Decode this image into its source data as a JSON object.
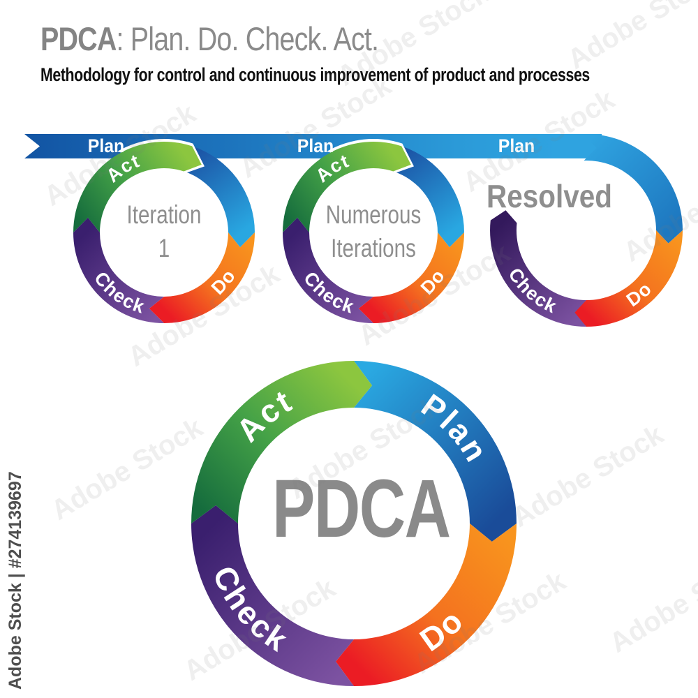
{
  "header": {
    "title_bold": "PDCA",
    "title_rest": ": Plan. Do. Check. Act.",
    "subtitle": "Methodology for control and continuous improvement of product and processes"
  },
  "ribbon": {
    "plan_labels": [
      "Plan",
      "Plan",
      "Plan"
    ]
  },
  "cycles": [
    {
      "name": "iteration-1",
      "center_lines": [
        "Iteration",
        "1"
      ],
      "arc_labels": {
        "act": "Act",
        "do": "Do",
        "check": "Check"
      }
    },
    {
      "name": "numerous-iterations",
      "center_lines": [
        "Numerous",
        "Iterations"
      ],
      "arc_labels": {
        "act": "Act",
        "do": "Do",
        "check": "Check"
      }
    },
    {
      "name": "resolved",
      "label": "Resolved",
      "arc_labels": {
        "do": "Do",
        "check": "Check"
      }
    }
  ],
  "main_cycle": {
    "center_label": "PDCA",
    "arc_labels": {
      "plan": "Plan",
      "do": "Do",
      "check": "Check",
      "act": "Act"
    }
  },
  "watermark": {
    "side_text": "Adobe Stock | #274139697",
    "tile_text": "Adobe Stock"
  },
  "colors": {
    "band": [
      "#1254a3",
      "#1968b3",
      "#2181c7",
      "#2b9ad8",
      "#2fa3e0"
    ],
    "blue_dark": "#1a4c99",
    "blue_mid": "#1c55a6",
    "blue_light": "#29a7e1",
    "blue_sky": "#2fa3e0",
    "blue_c3_end": "#1e78c0",
    "big_blue_light": "#2aa9e2",
    "orange": "#f8941e",
    "orange_mid": "#f4711f",
    "red": "#eb1c24",
    "purple_light": "#7c52a1",
    "purple_dark": "#3a1f6e",
    "purple_deep": "#33195c",
    "green_dark": "#156c3d",
    "green_mid": "#45a247",
    "green_light": "#8cc63f",
    "gray_text": "#8e8e8e",
    "title_gray": "#8a8a8a",
    "subtitle_black": "#101010",
    "white": "#ffffff"
  }
}
